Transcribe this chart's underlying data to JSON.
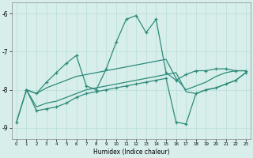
{
  "xlabel": "Humidex (Indice chaleur)",
  "bg_color": "#d7eeeb",
  "line_color": "#2e8b7a",
  "grid_color": "#b8ddd9",
  "xlim": [
    -0.5,
    23.5
  ],
  "ylim": [
    -9.3,
    -5.7
  ],
  "yticks": [
    -9,
    -8,
    -7,
    -6
  ],
  "xticks": [
    0,
    1,
    2,
    3,
    4,
    5,
    6,
    7,
    8,
    9,
    10,
    11,
    12,
    13,
    14,
    15,
    16,
    17,
    18,
    19,
    20,
    21,
    22,
    23
  ],
  "s1_x": [
    0,
    1,
    2,
    3,
    4,
    5,
    6,
    7,
    8,
    9,
    10,
    11,
    12,
    13,
    14,
    15,
    16,
    17,
    18,
    19,
    20,
    21,
    22,
    23
  ],
  "s1_y": [
    -8.85,
    -8.0,
    -8.1,
    -7.8,
    -7.55,
    -7.3,
    -7.1,
    -7.9,
    -8.0,
    -7.45,
    -6.75,
    -6.15,
    -6.05,
    -6.5,
    -6.15,
    -7.55,
    -7.75,
    -7.6,
    -7.5,
    -7.5,
    -7.45,
    -7.45,
    -7.5,
    -7.5
  ],
  "s2_x": [
    0,
    1,
    2,
    3,
    4,
    5,
    6,
    7,
    8,
    9,
    10,
    11,
    12,
    13,
    14,
    15,
    16,
    17,
    18,
    19,
    20,
    21,
    22,
    23
  ],
  "s2_y": [
    -8.85,
    -8.0,
    -8.1,
    -7.95,
    -7.85,
    -7.75,
    -7.65,
    -7.6,
    -7.55,
    -7.5,
    -7.45,
    -7.4,
    -7.35,
    -7.3,
    -7.25,
    -7.2,
    -7.7,
    -8.0,
    -7.9,
    -7.8,
    -7.65,
    -7.55,
    -7.5,
    -7.5
  ],
  "s3_x": [
    1,
    2,
    3,
    4,
    5,
    6,
    7,
    8,
    9,
    10,
    11,
    12,
    13,
    14,
    15,
    16,
    17,
    18,
    19,
    20,
    21,
    22,
    23
  ],
  "s3_y": [
    -8.0,
    -8.45,
    -8.35,
    -8.3,
    -8.2,
    -8.1,
    -8.0,
    -7.95,
    -7.9,
    -7.85,
    -7.8,
    -7.75,
    -7.7,
    -7.65,
    -7.6,
    -7.55,
    -8.05,
    -8.1,
    -8.0,
    -7.95,
    -7.85,
    -7.75,
    -7.55
  ],
  "s4_x": [
    1,
    2,
    3,
    4,
    5,
    6,
    7,
    8,
    9,
    10,
    11,
    12,
    13,
    14,
    15,
    16,
    17,
    18,
    19,
    20,
    21,
    22,
    23
  ],
  "s4_y": [
    -8.0,
    -8.55,
    -8.5,
    -8.45,
    -8.35,
    -8.2,
    -8.1,
    -8.05,
    -8.0,
    -7.95,
    -7.9,
    -7.85,
    -7.8,
    -7.75,
    -7.7,
    -8.85,
    -8.9,
    -8.1,
    -8.0,
    -7.95,
    -7.85,
    -7.75,
    -7.55
  ]
}
